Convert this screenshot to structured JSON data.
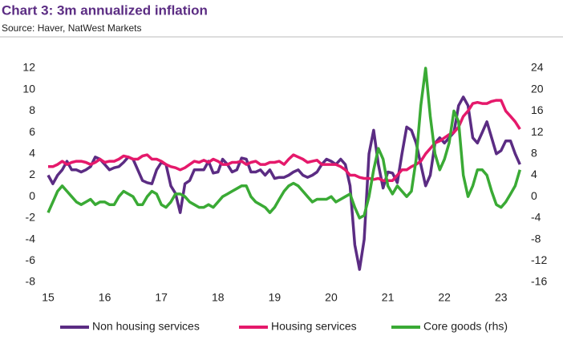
{
  "chart_data": {
    "type": "line",
    "title": "Chart 3: 3m annualized inflation",
    "subtitle": "Source:  Haver, NatWest Markets",
    "x": [
      15,
      15.083,
      15.167,
      15.25,
      15.333,
      15.417,
      15.5,
      15.583,
      15.667,
      15.75,
      15.833,
      15.917,
      16,
      16.083,
      16.167,
      16.25,
      16.333,
      16.417,
      16.5,
      16.583,
      16.667,
      16.75,
      16.833,
      16.917,
      17,
      17.083,
      17.167,
      17.25,
      17.333,
      17.417,
      17.5,
      17.583,
      17.667,
      17.75,
      17.833,
      17.917,
      18,
      18.083,
      18.167,
      18.25,
      18.333,
      18.417,
      18.5,
      18.583,
      18.667,
      18.75,
      18.833,
      18.917,
      19,
      19.083,
      19.167,
      19.25,
      19.333,
      19.417,
      19.5,
      19.583,
      19.667,
      19.75,
      19.833,
      19.917,
      20,
      20.083,
      20.167,
      20.25,
      20.333,
      20.417,
      20.5,
      20.583,
      20.667,
      20.75,
      20.833,
      20.917,
      21,
      21.083,
      21.167,
      21.25,
      21.333,
      21.417,
      21.5,
      21.583,
      21.667,
      21.75,
      21.833,
      21.917,
      22,
      22.083,
      22.167,
      22.25,
      22.333,
      22.417,
      22.5,
      22.583,
      22.667,
      22.75,
      22.833,
      22.917,
      23,
      23.083,
      23.167,
      23.25,
      23.333
    ],
    "series": [
      {
        "name": "Non housing services",
        "color": "#5b2c83",
        "values": [
          2,
          1.2,
          2,
          2.5,
          3.3,
          2.5,
          2.5,
          2.3,
          2.5,
          2.8,
          3.7,
          3.5,
          3,
          2.5,
          2.7,
          2.8,
          3.2,
          3.7,
          3.5,
          2.5,
          1.5,
          1.3,
          1.2,
          2.5,
          3.2,
          3,
          1,
          0.3,
          -1.5,
          1.2,
          1.5,
          2.5,
          2.5,
          2.5,
          3.3,
          2.2,
          2.3,
          3.5,
          3,
          2.3,
          2.5,
          3.6,
          3.5,
          2.3,
          2.3,
          2.5,
          2,
          2.5,
          1.7,
          1.8,
          1.8,
          2,
          2.3,
          2.5,
          2,
          1.8,
          2,
          2.3,
          3,
          3.5,
          3.3,
          3,
          3.5,
          3,
          1,
          -4.5,
          -6.8,
          -4,
          4,
          6.2,
          3,
          0.8,
          2.3,
          2.2,
          1.3,
          4,
          6.5,
          6.2,
          5,
          3,
          1,
          2,
          5,
          5.5,
          5,
          5.5,
          6,
          8.5,
          9.3,
          8.5,
          5.5,
          5,
          6,
          7,
          5.5,
          4,
          4.3,
          5.2,
          5.2,
          4,
          3
        ]
      },
      {
        "name": "Housing services",
        "color": "#e5196b",
        "values": [
          2.8,
          2.8,
          3,
          3.3,
          3,
          3.2,
          3.3,
          3.3,
          3.2,
          3,
          3.2,
          3.5,
          3.2,
          3.3,
          3.3,
          3.5,
          3.8,
          3.7,
          3.5,
          3.5,
          3.8,
          3.9,
          3.5,
          3.5,
          3.3,
          3,
          2.8,
          2.7,
          2.5,
          2.7,
          3,
          3.3,
          3.2,
          3.4,
          3.2,
          3.5,
          3.3,
          3,
          3,
          3.2,
          3.2,
          3.3,
          3,
          3.2,
          3.3,
          3,
          3,
          3.2,
          3.2,
          3.3,
          3,
          3.5,
          3.9,
          3.7,
          3.5,
          3.2,
          3.3,
          3.4,
          3,
          3,
          3,
          3,
          2.8,
          2.5,
          2,
          2,
          1.8,
          1.7,
          1.7,
          1.6,
          1.7,
          1.5,
          1.5,
          1.5,
          2,
          2.5,
          2.5,
          2.8,
          3,
          3.3,
          4,
          4.5,
          5,
          5.2,
          5.5,
          5.8,
          6,
          6.5,
          7.5,
          8,
          8.7,
          8.8,
          8.7,
          8.7,
          8.9,
          9,
          9,
          8,
          7.5,
          7,
          6.3
        ]
      },
      {
        "name": "Core goods (rhs)",
        "color": "#3aaa35",
        "axis": "y2",
        "values": [
          -3,
          -1,
          1,
          2,
          1,
          0,
          -1,
          -1.5,
          -1,
          -0.5,
          -1.5,
          -1,
          -1,
          -1.5,
          -1.5,
          0,
          1,
          0.5,
          0,
          -1.5,
          -1.5,
          0,
          1,
          0.5,
          -1.5,
          -2,
          -1,
          0.5,
          0.5,
          0,
          -1,
          -1.5,
          -2,
          -2,
          -1.5,
          -2,
          -1,
          0,
          0.5,
          1,
          1.5,
          2,
          2,
          0,
          -1,
          -1.5,
          -2,
          -3,
          -2,
          -0.5,
          1,
          2,
          2.5,
          2,
          1,
          0,
          -1,
          -0.5,
          -0.5,
          -0.5,
          0,
          -1,
          -0.5,
          0,
          0.5,
          -2,
          -4,
          -3.5,
          0,
          5,
          9,
          7,
          2,
          0.5,
          2,
          1,
          0,
          1,
          7,
          17,
          24,
          15,
          8,
          5,
          7,
          10,
          16,
          14,
          4,
          0,
          2,
          5,
          5,
          4,
          1,
          -1.5,
          -2,
          -1,
          0.5,
          2,
          5
        ]
      }
    ],
    "xlim": [
      15,
      23.4
    ],
    "xticks": [
      15,
      16,
      17,
      18,
      19,
      20,
      21,
      22,
      23
    ],
    "ylim": [
      -8,
      12
    ],
    "yticks": [
      -8,
      -6,
      -4,
      -2,
      0,
      2,
      4,
      6,
      8,
      10,
      12
    ],
    "y2lim": [
      -16,
      24
    ],
    "y2ticks": [
      -16,
      -12,
      -8,
      -4,
      0,
      4,
      8,
      12,
      16,
      20,
      24
    ],
    "legend": "bottom"
  }
}
